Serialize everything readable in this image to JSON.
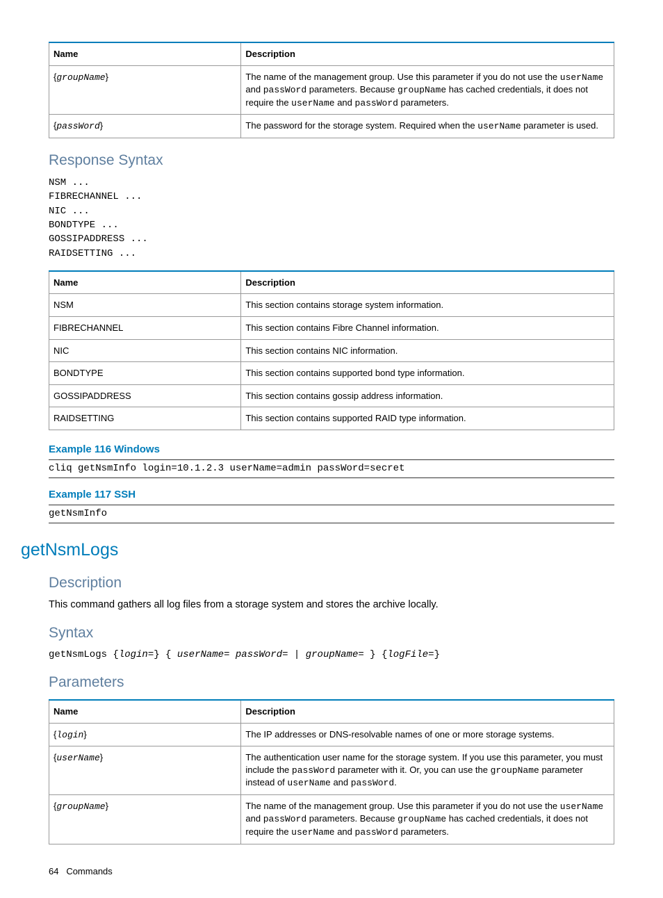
{
  "colors": {
    "accent_blue": "#007dba",
    "muted_blue": "#5f7f9f",
    "border_gray": "#999999",
    "text_black": "#000000",
    "background": "#ffffff"
  },
  "table1": {
    "headers": {
      "name": "Name",
      "desc": "Description"
    },
    "rows": [
      {
        "name_prefix": "{",
        "name_param": "groupName",
        "name_suffix": "}",
        "desc_pre": "The name of the management group. Use this parameter if you do not use the ",
        "desc_m1": "userName",
        "desc_mid1": " and ",
        "desc_m2": "passWord",
        "desc_mid2": " parameters. Because ",
        "desc_m3": "groupName",
        "desc_mid3": " has cached credentials, it does not require the ",
        "desc_m4": "userName",
        "desc_mid4": " and ",
        "desc_m5": "passWord",
        "desc_post": " parameters."
      },
      {
        "name_prefix": "{",
        "name_param": "passWord",
        "name_suffix": "}",
        "desc_pre": "The password for the storage system. Required when the ",
        "desc_m1": "userName",
        "desc_post": " parameter is used."
      }
    ]
  },
  "response_syntax": {
    "heading": "Response Syntax",
    "code": "NSM ...\nFIBRECHANNEL ...\nNIC ...\nBONDTYPE ...\nGOSSIPADDRESS ...\nRAIDSETTING ..."
  },
  "table2": {
    "headers": {
      "name": "Name",
      "desc": "Description"
    },
    "rows": [
      {
        "name": "NSM",
        "desc": "This section contains storage system information."
      },
      {
        "name": "FIBRECHANNEL",
        "desc": "This section contains Fibre Channel information."
      },
      {
        "name": "NIC",
        "desc": "This section contains NIC information."
      },
      {
        "name": "BONDTYPE",
        "desc": "This section contains supported bond type information."
      },
      {
        "name": "GOSSIPADDRESS",
        "desc": "This section contains gossip address information."
      },
      {
        "name": "RAIDSETTING",
        "desc": "This section contains supported RAID type information."
      }
    ]
  },
  "example116": {
    "heading": "Example 116 Windows",
    "code": "cliq getNsmInfo login=10.1.2.3 userName=admin passWord=secret"
  },
  "example117": {
    "heading": "Example 117 SSH",
    "code": "getNsmInfo"
  },
  "getNsmLogs": {
    "heading": "getNsmLogs",
    "description": {
      "heading": "Description",
      "text": "This command gathers all log files from a storage system and stores the archive locally."
    },
    "syntax": {
      "heading": "Syntax",
      "cmd": "getNsmLogs",
      "p1": "login=",
      "p2": "userName=",
      "p3": "passWord=",
      "p4": "groupName=",
      "p5": "logFile="
    },
    "parameters_heading": "Parameters"
  },
  "table3": {
    "headers": {
      "name": "Name",
      "desc": "Description"
    },
    "rows": [
      {
        "name_param": "login",
        "desc_full": "The IP addresses or DNS-resolvable names of one or more storage systems."
      },
      {
        "name_param": "userName",
        "desc_pre": "The authentication user name for the storage system. If you use this parameter, you must include the ",
        "desc_m1": "passWord",
        "desc_mid1": " parameter with it. Or, you can use the ",
        "desc_m2": "groupName",
        "desc_mid2": " parameter instead of ",
        "desc_m3": "userName",
        "desc_mid3": " and ",
        "desc_m4": "passWord",
        "desc_post": "."
      },
      {
        "name_param": "groupName",
        "desc_pre": "The name of the management group. Use this parameter if you do not use the ",
        "desc_m1": "userName",
        "desc_mid1": " and ",
        "desc_m2": "passWord",
        "desc_mid2": " parameters. Because ",
        "desc_m3": "groupName",
        "desc_mid3": " has cached credentials, it does not require the ",
        "desc_m4": "userName",
        "desc_mid4": " and ",
        "desc_m5": "passWord",
        "desc_post": " parameters."
      }
    ]
  },
  "footer": {
    "page": "64",
    "label": "Commands"
  }
}
